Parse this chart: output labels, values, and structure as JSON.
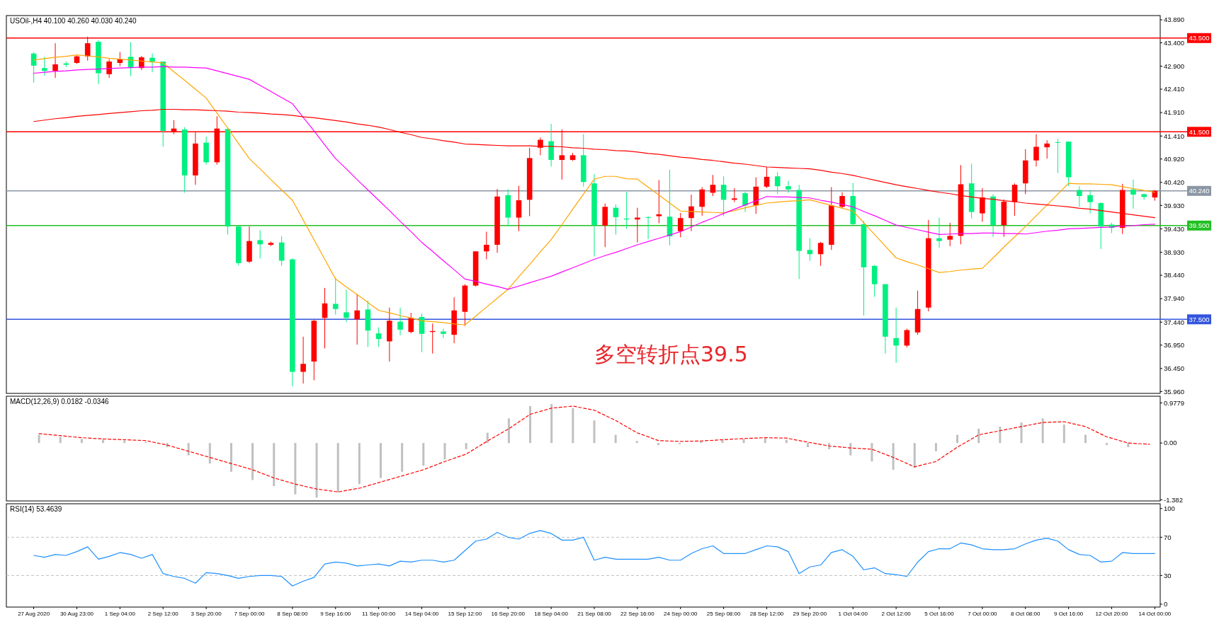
{
  "chart_data": [
    {
      "type": "candlestick",
      "title": "USOil-,H4 40.100 40.260 40.030 40.240",
      "tick_labels": "y",
      "categories": [
        null,
        null,
        null,
        null,
        null,
        null,
        null,
        null,
        null,
        null,
        null,
        null,
        null,
        null,
        null,
        null,
        null,
        null,
        null,
        null,
        null,
        null,
        null,
        null,
        null,
        null,
        null,
        null,
        null,
        null,
        null,
        null,
        null,
        null,
        null,
        null,
        null,
        null,
        null,
        null,
        null,
        null,
        null,
        null,
        null,
        null,
        null,
        null,
        null,
        null,
        null,
        null,
        null,
        null,
        null,
        null,
        null,
        null,
        null,
        null,
        null,
        null,
        null,
        null,
        null,
        null,
        null,
        null,
        null,
        null,
        null,
        null,
        null,
        null,
        null,
        null,
        null,
        null,
        null,
        null,
        null,
        null,
        null,
        null,
        null,
        null,
        null,
        null,
        null,
        null,
        null,
        null,
        null,
        null,
        null,
        null,
        null,
        null,
        null,
        null,
        null,
        null,
        null,
        null,
        null
      ],
      "ohlc": [
        [
          43.17,
          43.2,
          42.55,
          42.91
        ],
        [
          42.86,
          43.1,
          42.7,
          42.8
        ],
        [
          42.8,
          43.39,
          42.65,
          42.94
        ],
        [
          42.96,
          43.0,
          42.88,
          42.93
        ],
        [
          42.97,
          43.13,
          42.95,
          43.11
        ],
        [
          43.11,
          43.53,
          43.02,
          43.39
        ],
        [
          43.42,
          43.45,
          42.52,
          42.75
        ],
        [
          42.73,
          43.05,
          42.65,
          43.0
        ],
        [
          42.97,
          43.2,
          42.9,
          43.05
        ],
        [
          43.1,
          43.41,
          42.69,
          42.87
        ],
        [
          42.86,
          43.12,
          42.82,
          43.09
        ],
        [
          43.08,
          43.17,
          42.77,
          43.0
        ],
        [
          43.0,
          43.0,
          41.18,
          41.52
        ],
        [
          41.49,
          41.75,
          41.45,
          41.57
        ],
        [
          41.55,
          41.6,
          40.2,
          40.57
        ],
        [
          40.57,
          41.49,
          40.37,
          41.25
        ],
        [
          41.27,
          41.4,
          40.8,
          40.85
        ],
        [
          40.85,
          41.83,
          40.8,
          41.57
        ],
        [
          41.56,
          41.6,
          39.31,
          39.48
        ],
        [
          39.48,
          39.5,
          38.65,
          38.7
        ],
        [
          38.73,
          39.48,
          38.7,
          39.17
        ],
        [
          39.19,
          39.4,
          38.8,
          39.1
        ],
        [
          39.09,
          39.16,
          39.06,
          39.13
        ],
        [
          39.14,
          39.27,
          38.64,
          38.75
        ],
        [
          38.78,
          38.8,
          36.07,
          36.38
        ],
        [
          36.38,
          37.13,
          36.13,
          36.55
        ],
        [
          36.6,
          37.5,
          36.2,
          37.47
        ],
        [
          37.53,
          38.17,
          36.88,
          37.84
        ],
        [
          37.83,
          38.39,
          37.6,
          37.72
        ],
        [
          37.65,
          38.13,
          37.44,
          37.53
        ],
        [
          37.5,
          38.04,
          36.96,
          37.69
        ],
        [
          37.71,
          37.9,
          36.91,
          37.26
        ],
        [
          37.2,
          37.33,
          36.91,
          37.08
        ],
        [
          37.03,
          37.75,
          36.6,
          37.47
        ],
        [
          37.45,
          37.75,
          37.16,
          37.28
        ],
        [
          37.23,
          37.64,
          37.2,
          37.53
        ],
        [
          37.55,
          37.62,
          36.8,
          37.19
        ],
        [
          37.23,
          37.41,
          36.77,
          37.25
        ],
        [
          37.24,
          37.3,
          37.1,
          37.19
        ],
        [
          37.17,
          37.97,
          36.99,
          37.69
        ],
        [
          37.66,
          38.25,
          37.36,
          38.22
        ],
        [
          38.22,
          38.95,
          38.2,
          38.95
        ],
        [
          38.95,
          39.37,
          38.78,
          39.09
        ],
        [
          39.09,
          40.28,
          38.92,
          40.12
        ],
        [
          40.15,
          40.28,
          39.48,
          39.67
        ],
        [
          39.67,
          40.35,
          39.38,
          40.04
        ],
        [
          40.05,
          41.16,
          39.7,
          40.94
        ],
        [
          41.16,
          41.38,
          41.0,
          41.33
        ],
        [
          41.3,
          41.67,
          40.76,
          40.9
        ],
        [
          40.9,
          41.55,
          40.48,
          41.0
        ],
        [
          40.9,
          41.05,
          40.88,
          41.0
        ],
        [
          41.0,
          41.45,
          40.33,
          40.43
        ],
        [
          40.4,
          40.6,
          38.84,
          39.51
        ],
        [
          39.5,
          39.97,
          39.04,
          39.9
        ],
        [
          39.88,
          39.95,
          39.31,
          39.68
        ],
        [
          39.65,
          40.22,
          39.43,
          39.63
        ],
        [
          39.63,
          39.88,
          39.14,
          39.67
        ],
        [
          39.68,
          39.7,
          39.21,
          39.67
        ],
        [
          39.7,
          40.47,
          39.55,
          39.74
        ],
        [
          39.69,
          40.69,
          39.08,
          39.27
        ],
        [
          39.38,
          39.77,
          39.25,
          39.66
        ],
        [
          39.66,
          40.16,
          39.38,
          39.91
        ],
        [
          39.9,
          40.32,
          39.71,
          40.27
        ],
        [
          40.2,
          40.58,
          40.13,
          40.37
        ],
        [
          40.37,
          40.55,
          39.7,
          40.05
        ],
        [
          40.05,
          40.3,
          40.0,
          40.08
        ],
        [
          40.19,
          40.22,
          39.79,
          39.93
        ],
        [
          39.93,
          40.53,
          39.75,
          40.33
        ],
        [
          40.33,
          40.75,
          40.3,
          40.54
        ],
        [
          40.55,
          40.64,
          40.17,
          40.34
        ],
        [
          40.34,
          40.45,
          40.2,
          40.27
        ],
        [
          40.26,
          40.37,
          38.36,
          38.96
        ],
        [
          38.98,
          39.23,
          38.75,
          38.89
        ],
        [
          38.89,
          39.15,
          38.64,
          39.13
        ],
        [
          39.09,
          40.32,
          38.98,
          39.93
        ],
        [
          39.9,
          40.21,
          39.87,
          40.13
        ],
        [
          40.13,
          40.41,
          39.5,
          39.53
        ],
        [
          39.53,
          39.6,
          37.58,
          38.61
        ],
        [
          38.64,
          38.66,
          37.98,
          38.25
        ],
        [
          38.25,
          38.25,
          36.77,
          37.13
        ],
        [
          37.1,
          37.75,
          36.57,
          36.94
        ],
        [
          36.94,
          37.3,
          36.9,
          37.27
        ],
        [
          37.22,
          38.11,
          37.17,
          37.72
        ],
        [
          37.75,
          39.62,
          37.67,
          39.23
        ],
        [
          39.23,
          39.67,
          39.03,
          39.17
        ],
        [
          39.2,
          39.56,
          39.06,
          39.28
        ],
        [
          39.28,
          40.79,
          39.1,
          40.38
        ],
        [
          40.4,
          40.82,
          39.65,
          39.79
        ],
        [
          39.76,
          40.3,
          39.58,
          40.1
        ],
        [
          40.12,
          40.17,
          39.26,
          39.51
        ],
        [
          39.51,
          40.06,
          39.26,
          40.01
        ],
        [
          40.0,
          40.4,
          39.71,
          40.37
        ],
        [
          40.4,
          41.13,
          40.17,
          40.89
        ],
        [
          40.89,
          41.45,
          40.76,
          41.18
        ],
        [
          41.17,
          41.32,
          40.93,
          41.25
        ],
        [
          41.28,
          41.35,
          40.62,
          41.27
        ],
        [
          41.29,
          41.3,
          40.34,
          40.53
        ],
        [
          40.26,
          40.34,
          39.9,
          40.13
        ],
        [
          40.15,
          40.26,
          39.76,
          40.0
        ],
        [
          39.98,
          40.0,
          39.0,
          39.48
        ],
        [
          39.52,
          39.56,
          39.34,
          39.45
        ],
        [
          39.45,
          40.39,
          39.32,
          40.26
        ],
        [
          40.27,
          40.48,
          39.86,
          40.16
        ],
        [
          40.17,
          40.18,
          40.05,
          40.11
        ],
        [
          40.1,
          40.26,
          40.03,
          40.24
        ]
      ],
      "colors": [
        "#00f080",
        "#00f080",
        "#ff0000",
        "#00f080",
        "#ff0000",
        "#ff0000",
        "#00f080",
        "#ff0000",
        "#ff0000",
        "#00f080",
        "#ff0000",
        "#00f080",
        "#00f080",
        "#ff0000",
        "#00f080",
        "#ff0000",
        "#00f080",
        "#ff0000",
        "#00f080",
        "#00f080",
        "#ff0000",
        "#00f080",
        "#ff0000",
        "#00f080",
        "#00f080",
        "#ff0000",
        "#ff0000",
        "#ff0000",
        "#00f080",
        "#00f080",
        "#ff0000",
        "#00f080",
        "#00f080",
        "#ff0000",
        "#00f080",
        "#ff0000",
        "#00f080",
        "#ff0000",
        "#00f080",
        "#ff0000",
        "#ff0000",
        "#ff0000",
        "#ff0000",
        "#ff0000",
        "#00f080",
        "#ff0000",
        "#ff0000",
        "#ff0000",
        "#00f080",
        "#ff0000",
        "#ff0000",
        "#00f080",
        "#00f080",
        "#ff0000",
        "#00f080",
        "#00f080",
        "#ff0000",
        "#00f080",
        "#ff0000",
        "#00f080",
        "#ff0000",
        "#ff0000",
        "#ff0000",
        "#ff0000",
        "#00f080",
        "#ff0000",
        "#00f080",
        "#ff0000",
        "#ff0000",
        "#00f080",
        "#00f080",
        "#00f080",
        "#00f080",
        "#ff0000",
        "#ff0000",
        "#ff0000",
        "#00f080",
        "#00f080",
        "#00f080",
        "#00f080",
        "#00f080",
        "#ff0000",
        "#ff0000",
        "#ff0000",
        "#00f080",
        "#ff0000",
        "#ff0000",
        "#00f080",
        "#ff0000",
        "#00f080",
        "#ff0000",
        "#ff0000",
        "#ff0000",
        "#ff0000",
        "#ff0000",
        "#00f080",
        "#00f080",
        "#00f080",
        "#00f080",
        "#00f080",
        "#00f080",
        "#ff0000",
        "#00f080",
        "#00f080",
        "#ff0000"
      ],
      "series": [
        {
          "type": "line",
          "color": "#ffa500",
          "values": [
            43.03,
            43.06,
            43.09,
            43.11,
            43.14,
            43.12,
            43.1,
            43.07,
            43.05,
            43.03,
            43.01,
            42.99,
            42.97,
            42.78,
            42.6,
            42.41,
            42.22,
            41.9,
            41.58,
            41.25,
            40.93,
            40.71,
            40.48,
            40.26,
            40.04,
            39.62,
            39.2,
            38.78,
            38.36,
            38.19,
            38.03,
            37.86,
            37.69,
            37.64,
            37.58,
            37.53,
            37.47,
            37.45,
            37.43,
            37.4,
            37.38,
            37.57,
            37.76,
            37.95,
            38.14,
            38.41,
            38.67,
            38.94,
            39.2,
            39.52,
            39.85,
            40.17,
            40.49,
            40.55,
            40.55,
            40.5,
            40.49,
            40.32,
            40.15,
            39.98,
            39.81,
            39.8,
            39.79,
            39.78,
            39.77,
            39.82,
            39.88,
            39.93,
            39.98,
            40.0,
            40.02,
            40.03,
            40.05,
            39.99,
            39.93,
            39.87,
            39.81,
            39.56,
            39.31,
            39.06,
            38.81,
            38.73,
            38.66,
            38.58,
            38.5,
            38.52,
            38.55,
            38.57,
            38.59,
            38.81,
            39.04,
            39.26,
            39.48,
            39.71,
            39.94,
            40.17,
            40.4,
            40.39,
            40.39,
            40.38,
            40.37,
            40.33,
            40.29,
            40.25,
            40.21
          ]
        },
        {
          "type": "line",
          "color": "#ff00ff",
          "values": [
            42.75,
            42.77,
            42.79,
            42.8,
            42.82,
            42.83,
            42.84,
            42.85,
            42.86,
            42.87,
            42.88,
            42.88,
            42.89,
            42.88,
            42.88,
            42.87,
            42.86,
            42.8,
            42.74,
            42.68,
            42.62,
            42.49,
            42.36,
            42.23,
            42.1,
            41.81,
            41.52,
            41.22,
            40.93,
            40.71,
            40.48,
            40.26,
            40.04,
            39.82,
            39.59,
            39.37,
            39.14,
            38.95,
            38.75,
            38.56,
            38.36,
            38.31,
            38.25,
            38.2,
            38.14,
            38.21,
            38.28,
            38.35,
            38.42,
            38.51,
            38.6,
            38.69,
            38.78,
            38.86,
            38.93,
            39.01,
            39.09,
            39.16,
            39.23,
            39.3,
            39.37,
            39.47,
            39.57,
            39.66,
            39.76,
            39.85,
            39.94,
            40.03,
            40.12,
            40.11,
            40.11,
            40.1,
            40.09,
            40.04,
            40.0,
            39.95,
            39.9,
            39.8,
            39.71,
            39.61,
            39.51,
            39.46,
            39.41,
            39.36,
            39.31,
            39.32,
            39.33,
            39.33,
            39.34,
            39.34,
            39.33,
            39.33,
            39.32,
            39.35,
            39.38,
            39.4,
            39.43,
            39.44,
            39.45,
            39.46,
            39.47,
            39.49,
            39.5,
            39.52,
            39.53
          ]
        },
        {
          "type": "line",
          "color": "#ff0000",
          "values": [
            41.72,
            41.75,
            41.78,
            41.8,
            41.83,
            41.85,
            41.87,
            41.89,
            41.91,
            41.93,
            41.95,
            41.96,
            41.98,
            41.98,
            41.97,
            41.97,
            41.96,
            41.95,
            41.94,
            41.92,
            41.91,
            41.9,
            41.88,
            41.87,
            41.85,
            41.82,
            41.8,
            41.77,
            41.74,
            41.71,
            41.67,
            41.64,
            41.6,
            41.55,
            41.49,
            41.44,
            41.38,
            41.35,
            41.31,
            41.28,
            41.24,
            41.23,
            41.22,
            41.21,
            41.2,
            41.2,
            41.2,
            41.19,
            41.19,
            41.18,
            41.16,
            41.15,
            41.13,
            41.12,
            41.1,
            41.09,
            41.07,
            41.04,
            41.02,
            40.99,
            40.96,
            40.94,
            40.91,
            40.89,
            40.86,
            40.83,
            40.81,
            40.78,
            40.75,
            40.74,
            40.73,
            40.72,
            40.71,
            40.68,
            40.64,
            40.61,
            40.57,
            40.52,
            40.47,
            40.42,
            40.37,
            40.33,
            40.29,
            40.25,
            40.21,
            40.18,
            40.14,
            40.11,
            40.08,
            40.06,
            40.03,
            40.01,
            39.98,
            39.96,
            39.94,
            39.92,
            39.9,
            39.87,
            39.85,
            39.82,
            39.79,
            39.76,
            39.73,
            39.7,
            39.67
          ]
        }
      ],
      "ylim": [
        35.92,
        43.98
      ],
      "yticks": [
        {
          "value": 43.89,
          "label": "43.890"
        },
        {
          "value": 43.4,
          "label": "43.400"
        },
        {
          "value": 42.9,
          "label": "42.900"
        },
        {
          "value": 42.41,
          "label": "42.410"
        },
        {
          "value": 41.91,
          "label": "41.910"
        },
        {
          "value": 41.41,
          "label": "41.410"
        },
        {
          "value": 40.92,
          "label": "40.920"
        },
        {
          "value": 40.42,
          "label": "40.420"
        },
        {
          "value": 39.93,
          "label": "39.930"
        },
        {
          "value": 39.43,
          "label": "39.430"
        },
        {
          "value": 38.93,
          "label": "38.930"
        },
        {
          "value": 38.44,
          "label": "38.440"
        },
        {
          "value": 37.94,
          "label": "37.940"
        },
        {
          "value": 37.44,
          "label": "37.440"
        },
        {
          "value": 36.95,
          "label": "36.950"
        },
        {
          "value": 36.45,
          "label": "36.450"
        },
        {
          "value": 35.96,
          "label": "35.960"
        }
      ],
      "ref_lines": [
        {
          "axis": "y",
          "value": 43.5,
          "label": "43.500",
          "color": "#ff0000"
        },
        {
          "axis": "y",
          "value": 41.5,
          "label": "41.500",
          "color": "#ff0000"
        },
        {
          "axis": "y",
          "value": 40.24,
          "label": "40.240",
          "color": "#8a96a3"
        },
        {
          "axis": "y",
          "value": 39.5,
          "label": "39.500",
          "color": "#22c022"
        },
        {
          "axis": "y",
          "value": 37.5,
          "label": "37.500",
          "color": "#3355dd"
        }
      ],
      "annotations": [
        "多空转折点39.5"
      ]
    },
    {
      "type": "bar",
      "title": "MACD(12,26,9) 0.0182 -0.0346",
      "tick_labels": "y",
      "categories": [
        null,
        null,
        null,
        null,
        null,
        null,
        null,
        null,
        null,
        null,
        null,
        null,
        null,
        null,
        null,
        null,
        null,
        null,
        null,
        null,
        null,
        null,
        null,
        null,
        null,
        null,
        null,
        null,
        null,
        null,
        null,
        null,
        null,
        null,
        null,
        null,
        null,
        null,
        null,
        null,
        null,
        null,
        null,
        null,
        null,
        null,
        null,
        null,
        null,
        null,
        null,
        null,
        null
      ],
      "series": [
        {
          "type": "bar",
          "color": "#c0c0c0",
          "values": [
            0.2,
            0.15,
            0.1,
            0.08,
            0.06,
            0.03,
            -0.1,
            -0.3,
            -0.5,
            -0.7,
            -0.9,
            -1.05,
            -1.25,
            -1.33,
            -1.2,
            -1.0,
            -0.85,
            -0.7,
            -0.55,
            -0.4,
            -0.15,
            0.25,
            0.6,
            0.9,
            0.95,
            0.85,
            0.55,
            0.2,
            0.05,
            -0.05,
            -0.03,
            0.05,
            0.08,
            0.1,
            0.12,
            0.08,
            -0.1,
            -0.15,
            -0.3,
            -0.45,
            -0.65,
            -0.6,
            -0.2,
            0.2,
            0.35,
            0.4,
            0.5,
            0.6,
            0.45,
            0.2,
            -0.05,
            -0.1,
            null
          ]
        },
        {
          "type": "line",
          "color": "#ff0000",
          "line_style": "dashed",
          "values": [
            0.23,
            0.18,
            0.13,
            0.1,
            0.08,
            0.06,
            -0.05,
            -0.2,
            -0.35,
            -0.5,
            -0.65,
            -0.85,
            -1.0,
            -1.12,
            -1.19,
            -1.1,
            -0.95,
            -0.8,
            -0.65,
            -0.45,
            -0.27,
            0.05,
            0.35,
            0.7,
            0.85,
            0.9,
            0.8,
            0.55,
            0.25,
            0.06,
            0.04,
            0.05,
            0.08,
            0.11,
            0.13,
            0.12,
            0.02,
            -0.07,
            -0.12,
            -0.15,
            -0.35,
            -0.58,
            -0.45,
            -0.1,
            0.2,
            0.3,
            0.4,
            0.5,
            0.52,
            0.4,
            0.15,
            0.0,
            -0.03
          ]
        }
      ],
      "ylim": [
        -1.41,
        1.14
      ],
      "yticks": [
        {
          "value": 0.9779,
          "label": "0.9779"
        },
        {
          "value": 0,
          "label": "0.00"
        },
        -1.382
      ]
    },
    {
      "type": "line",
      "title": "RSI(14) 53.4639",
      "color": "#1e90ff",
      "categories": [
        "27 Aug 2020",
        null,
        null,
        null,
        "30 Aug 23:00",
        null,
        null,
        null,
        "1 Sep 04:00",
        null,
        null,
        null,
        "2 Sep 12:00",
        null,
        null,
        null,
        "3 Sep 20:00",
        null,
        null,
        null,
        "7 Sep 00:00",
        null,
        null,
        null,
        "8 Sep 08:00",
        null,
        null,
        null,
        "9 Sep 16:00",
        null,
        null,
        null,
        "11 Sep 00:00",
        null,
        null,
        null,
        "14 Sep 04:00",
        null,
        null,
        null,
        "15 Sep 12:00",
        null,
        null,
        null,
        "16 Sep 20:00",
        null,
        null,
        null,
        "18 Sep 04:00",
        null,
        null,
        null,
        "21 Sep 08:00",
        null,
        null,
        null,
        "22 Sep 16:00",
        null,
        null,
        null,
        "24 Sep 00:00",
        null,
        null,
        null,
        "25 Sep 08:00",
        null,
        null,
        null,
        "28 Sep 12:00",
        null,
        null,
        null,
        "29 Sep 20:00",
        null,
        null,
        null,
        "1 Oct 04:00",
        null,
        null,
        null,
        "2 Oct 12:00",
        null,
        null,
        null,
        "5 Oct 16:00",
        null,
        null,
        null,
        "7 Oct 00:00",
        null,
        null,
        null,
        "8 Oct 08:00",
        null,
        null,
        null,
        "9 Oct 16:00",
        null,
        null,
        null,
        "12 Oct 20:00",
        null,
        null,
        null,
        "14 Oct 00:00"
      ],
      "values": [
        51,
        49,
        52,
        51,
        55,
        60,
        47,
        50,
        54,
        52,
        48,
        52,
        32,
        29,
        27,
        22,
        33,
        32,
        30,
        27,
        29,
        30,
        30,
        29,
        19,
        24,
        28,
        42,
        44,
        43,
        40,
        41,
        42,
        40,
        45,
        44,
        46,
        46,
        44,
        46,
        56,
        66,
        68,
        75,
        70,
        68,
        74,
        77,
        74,
        67,
        67,
        70,
        46,
        49,
        47,
        47,
        47,
        47,
        49,
        46,
        46,
        53,
        58,
        61,
        53,
        53,
        53,
        57,
        61,
        60,
        55,
        32,
        39,
        41,
        54,
        57,
        50,
        36,
        38,
        32,
        31,
        29,
        44,
        55,
        58,
        58,
        64,
        62,
        58,
        57,
        57,
        58,
        63,
        67,
        69,
        66,
        57,
        52,
        51,
        44,
        45,
        54,
        53,
        53,
        53
      ],
      "ylim": [
        -3,
        105
      ],
      "yticks": [
        100,
        70,
        30,
        0
      ],
      "ref_lines": [
        {
          "axis": "y",
          "value": 70,
          "color": "#c0c0c0",
          "line_style": "dashed"
        },
        {
          "axis": "y",
          "value": 30,
          "color": "#c0c0c0",
          "line_style": "dashed"
        }
      ]
    }
  ]
}
